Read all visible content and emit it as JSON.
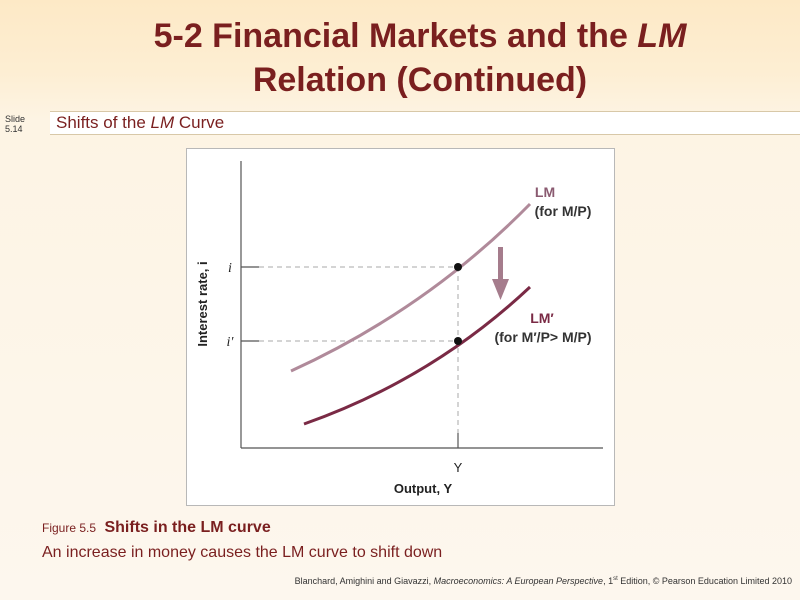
{
  "header": {
    "title_line1_pre": "5-2  Financial Markets and the ",
    "title_line1_italic": "LM",
    "title_line2": "Relation (Continued)",
    "slide_label": "Slide",
    "slide_number": "5.14",
    "subtitle_pre": "Shifts of the ",
    "subtitle_italic": "LM",
    "subtitle_post": " Curve"
  },
  "figure": {
    "y_axis_label": "Interest rate, i",
    "x_axis_label": "Output, Y",
    "x_tick_label": "Y",
    "y_tick_high": "i",
    "y_tick_low": "i′",
    "curve_lm_name": "LM",
    "curve_lm_cond": "(for M/P)",
    "curve_lm2_name": "LM′",
    "curve_lm2_cond": "(for M′/P> M/P)",
    "colors": {
      "lm": "#b08a9a",
      "lm_prime": "#7a2a45",
      "arrow": "#a57c8c",
      "axis": "#555555",
      "guide": "#aaaaaa"
    }
  },
  "caption": {
    "figure_label": "Figure 5.5",
    "figure_title": "Shifts in the LM curve",
    "description": "An increase in money causes the LM curve to shift down"
  },
  "citation": {
    "pre": "Blanchard, Amighini and Giavazzi, ",
    "book_italic": "Macroeconomics: A European Perspective",
    "edition_num": ", 1",
    "edition_sup": "st",
    "post": " Edition, © Pearson Education Limited 2010"
  }
}
